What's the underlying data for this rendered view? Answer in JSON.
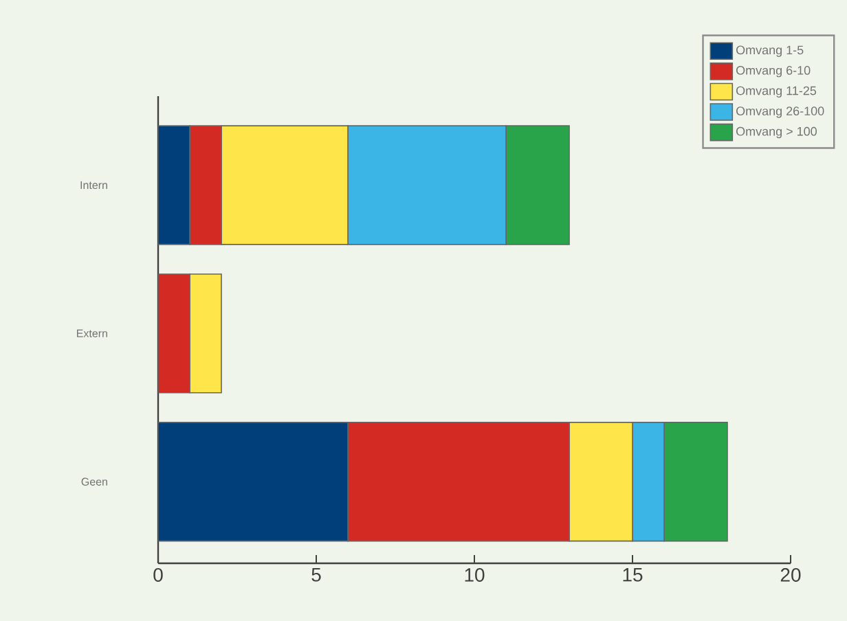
{
  "chart_data": {
    "type": "bar",
    "orientation": "horizontal",
    "stacked": true,
    "categories": [
      "Intern",
      "Extern",
      "Geen"
    ],
    "series": [
      {
        "name": "Omvang 1-5",
        "color": "#003f7a",
        "values": [
          1,
          0,
          6
        ]
      },
      {
        "name": "Omvang 6-10",
        "color": "#d42a24",
        "values": [
          1,
          1,
          7
        ]
      },
      {
        "name": "Omvang 11-25",
        "color": "#fde54a",
        "values": [
          4,
          1,
          2
        ]
      },
      {
        "name": "Omvang 26-100",
        "color": "#3bb4e6",
        "values": [
          5,
          0,
          1
        ]
      },
      {
        "name": "Omvang > 100",
        "color": "#2aa44a",
        "values": [
          2,
          0,
          2
        ]
      }
    ],
    "xlim": [
      0,
      20
    ],
    "xticks": [
      0,
      5,
      10,
      15,
      20
    ],
    "legend": "top right"
  }
}
